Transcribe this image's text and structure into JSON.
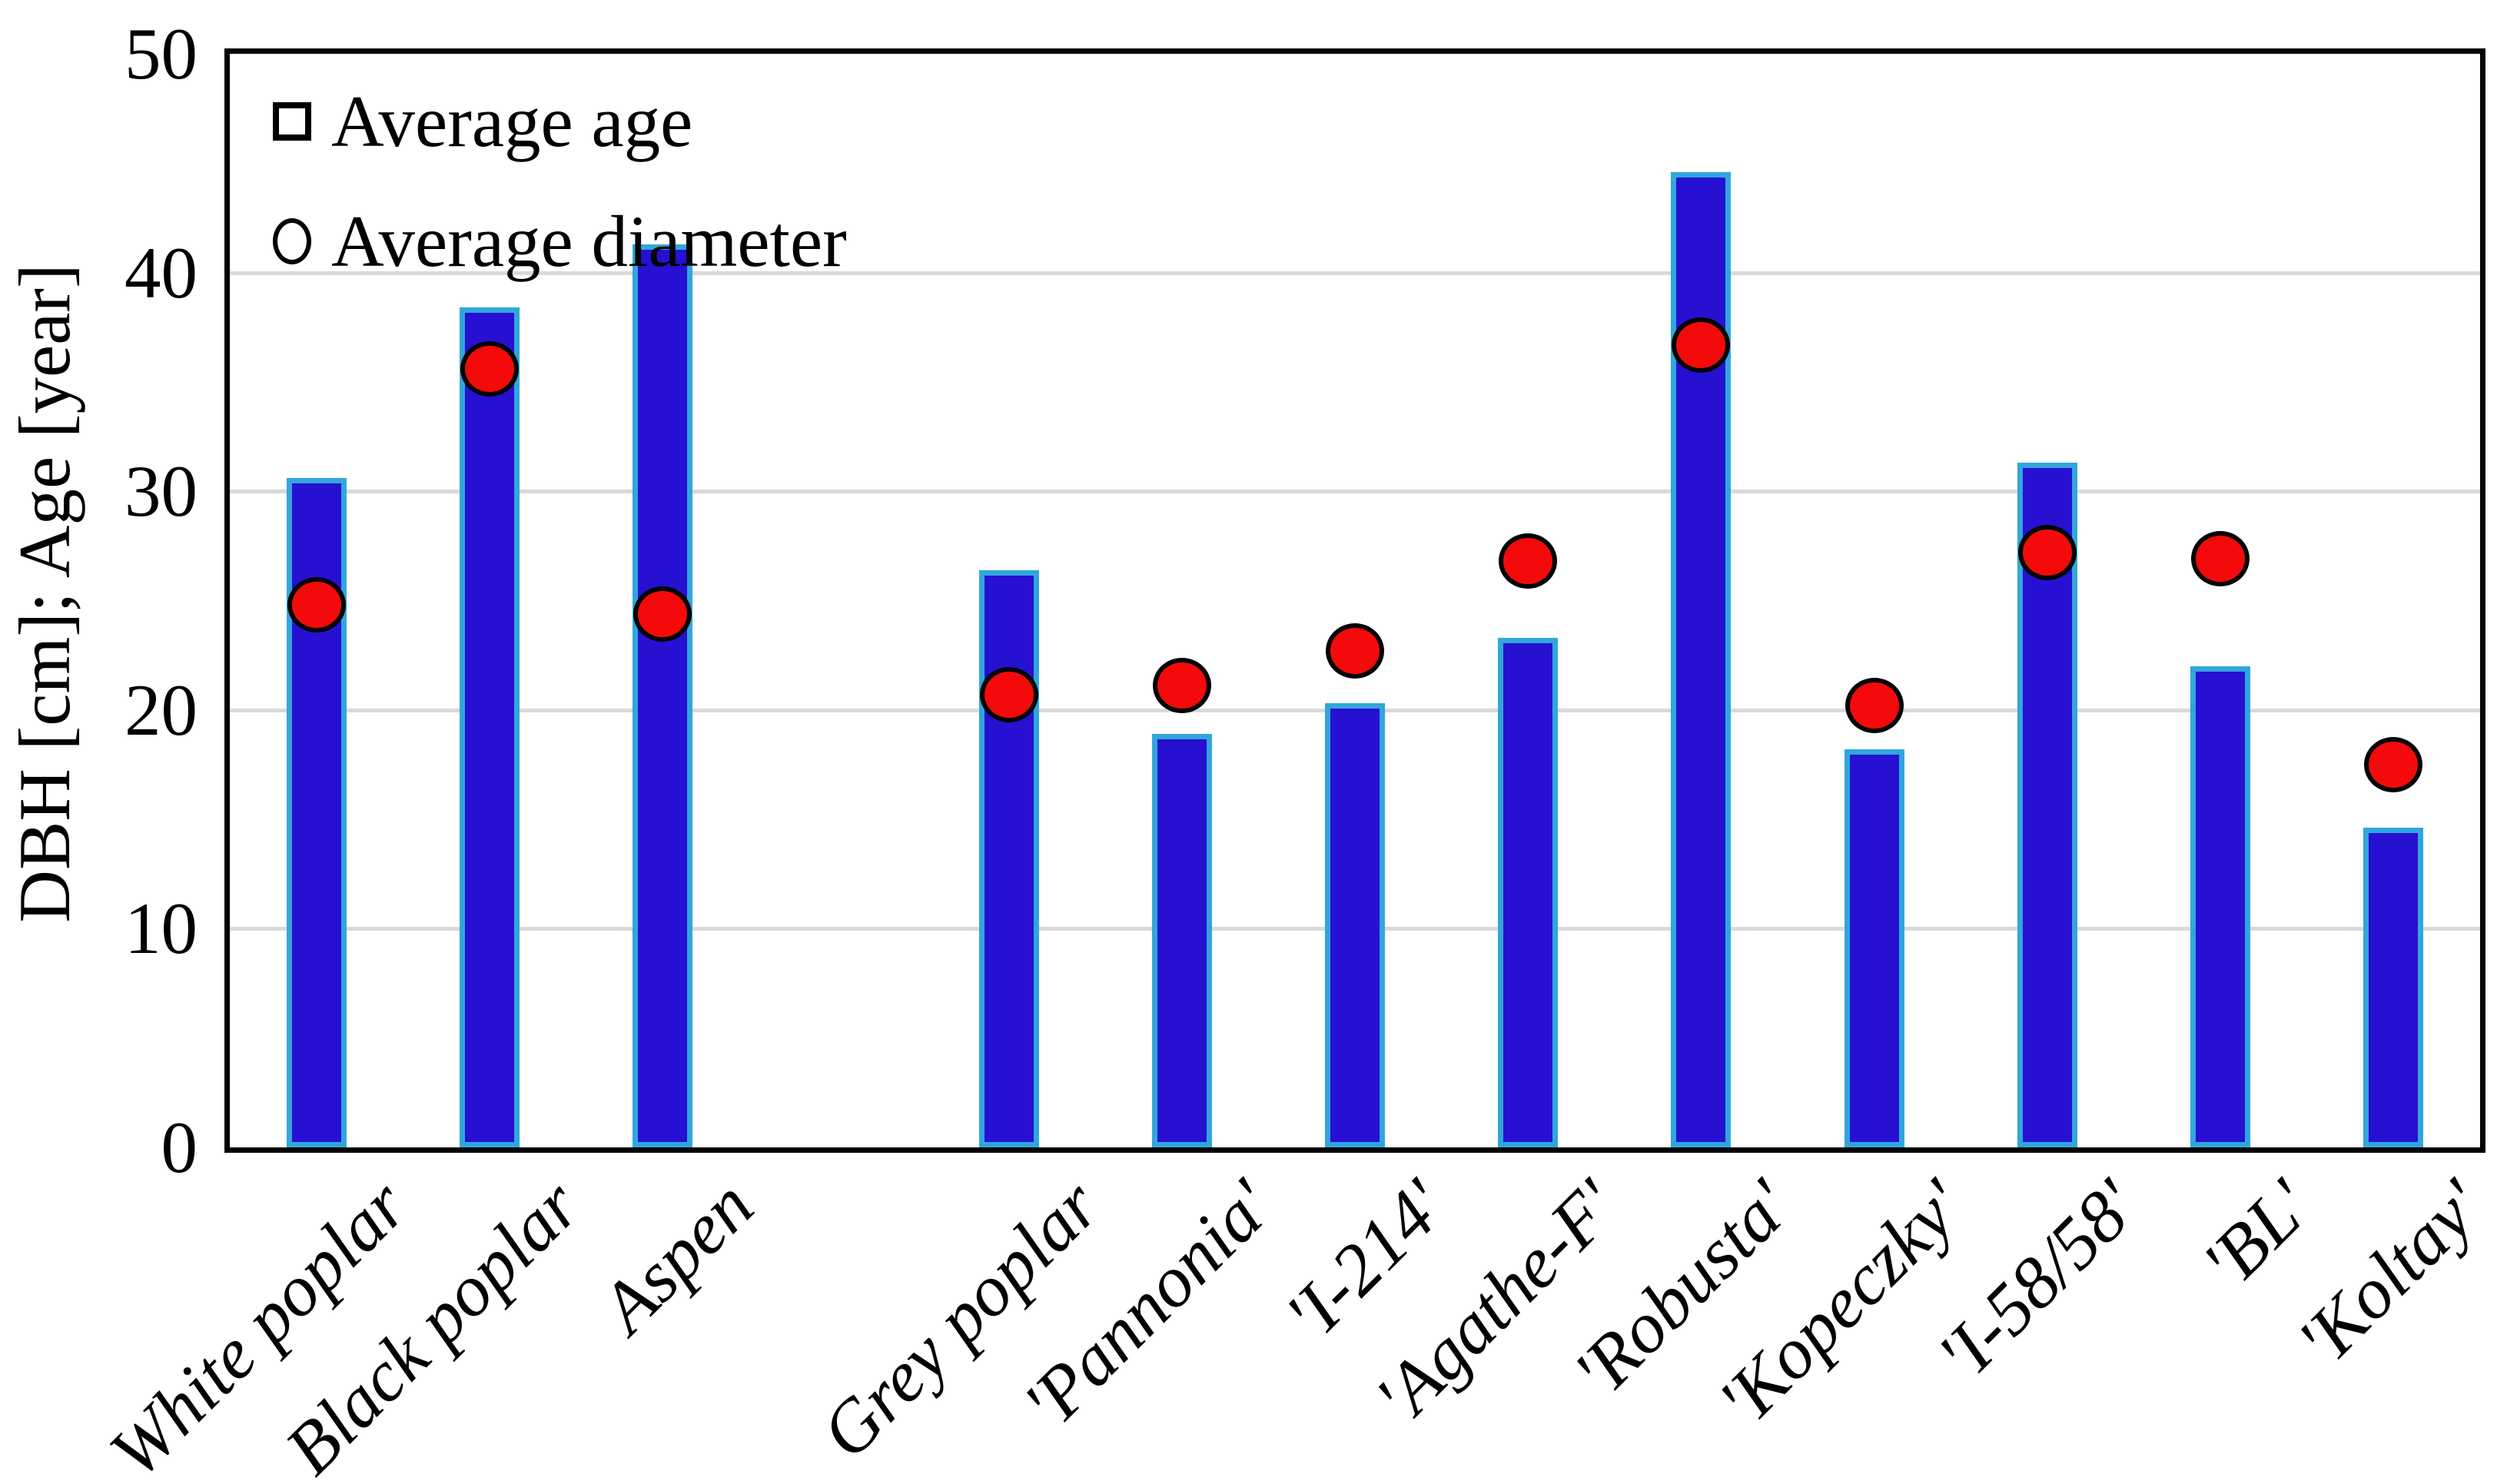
{
  "figure": {
    "y_axis_title": "DBH [cm]; Age [year]"
  },
  "chart_data": {
    "type": "bar",
    "subtype": "bar-with-scatter-overlay",
    "title": "",
    "xlabel": "",
    "ylabel": "DBH [cm]; Age [year]",
    "categories": [
      "White poplar",
      "Black poplar",
      "Aspen",
      "Grey poplar",
      "'Pannonia'",
      "'I-214'",
      "'Agathe-F'",
      "'Robusta'",
      "'Kopeczky'",
      "'I-58/58'",
      "'BL'",
      "'Koltay'"
    ],
    "slots": 13,
    "slot_index": [
      0,
      1,
      2,
      4,
      5,
      6,
      7,
      8,
      9,
      10,
      11,
      12
    ],
    "series": [
      {
        "name": "Average age",
        "type": "bar",
        "values": [
          30.6,
          38.4,
          41.3,
          26.4,
          18.9,
          20.3,
          23.3,
          44.6,
          18.2,
          31.3,
          22.0,
          14.6
        ]
      },
      {
        "name": "Average diameter",
        "type": "scatter",
        "values": [
          24.8,
          35.6,
          24.4,
          20.7,
          21.1,
          22.7,
          26.8,
          36.7,
          20.2,
          27.2,
          26.9,
          17.5
        ]
      }
    ],
    "ylim": [
      0,
      50
    ],
    "yticks": [
      0,
      10,
      20,
      30,
      40,
      50
    ],
    "grid": true,
    "legend_position": "top-left-inside",
    "colors": {
      "bar_fill": "#2610D2",
      "bar_border": "#31A6DC",
      "dot_fill": "#F40A0A",
      "dot_border": "#000000",
      "gridline": "#D9D9D9",
      "axis": "#000000",
      "text": "#000000",
      "background": "#FFFFFF"
    }
  }
}
